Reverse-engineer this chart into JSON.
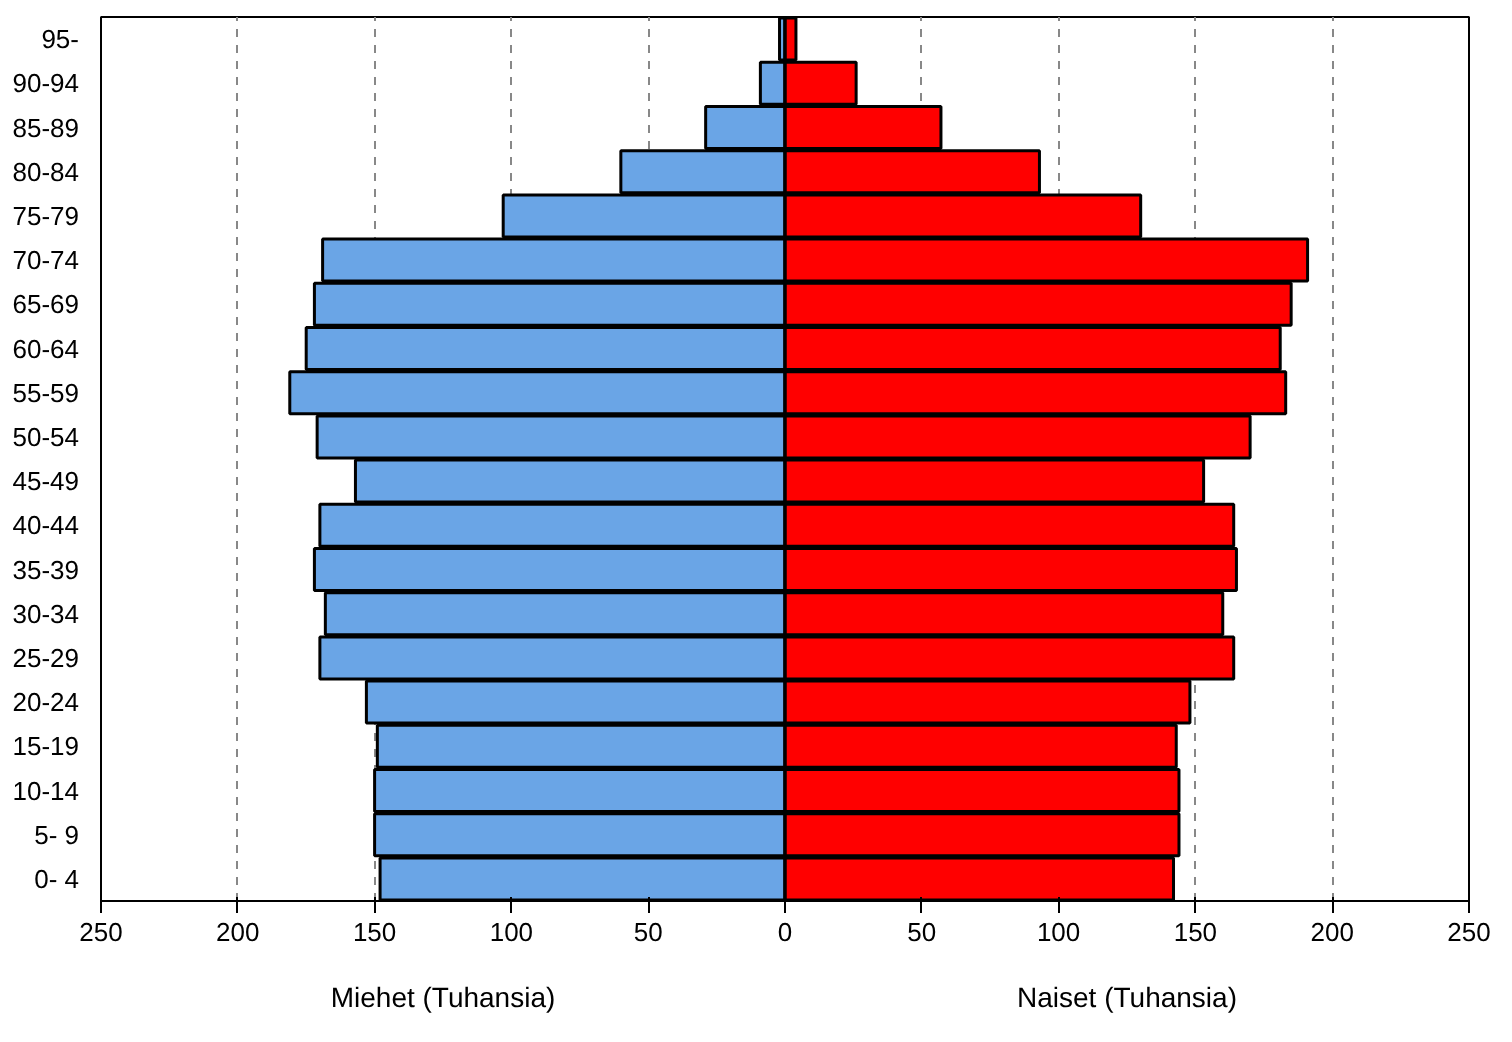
{
  "chart_data": {
    "type": "bar",
    "orientation": "horizontal",
    "categories": [
      "95-",
      "90-94",
      "85-89",
      "80-84",
      "75-79",
      "70-74",
      "65-69",
      "60-64",
      "55-59",
      "50-54",
      "45-49",
      "40-44",
      "35-39",
      "30-34",
      "25-29",
      "20-24",
      "15-19",
      "10-14",
      "5- 9",
      "0- 4"
    ],
    "series": [
      {
        "name": "Miehet (Tuhansia)",
        "color": "#6aa5e6",
        "values": [
          -2,
          -9,
          -29,
          -60,
          -103,
          -169,
          -172,
          -175,
          -181,
          -171,
          -157,
          -170,
          -172,
          -168,
          -170,
          -153,
          -149,
          -150,
          -150,
          -148
        ]
      },
      {
        "name": "Naiset (Tuhansia)",
        "color": "#ff0000",
        "values": [
          4,
          26,
          57,
          93,
          130,
          191,
          185,
          181,
          183,
          170,
          153,
          164,
          165,
          160,
          164,
          148,
          143,
          144,
          144,
          142
        ]
      }
    ],
    "xlim": [
      -250,
      250
    ],
    "xticks": [
      {
        "value": -250,
        "label": "250"
      },
      {
        "value": -200,
        "label": "200"
      },
      {
        "value": -150,
        "label": "150"
      },
      {
        "value": -100,
        "label": "100"
      },
      {
        "value": -50,
        "label": "50"
      },
      0,
      50,
      100,
      150,
      200,
      250
    ],
    "grid": "x",
    "stacked": true
  }
}
